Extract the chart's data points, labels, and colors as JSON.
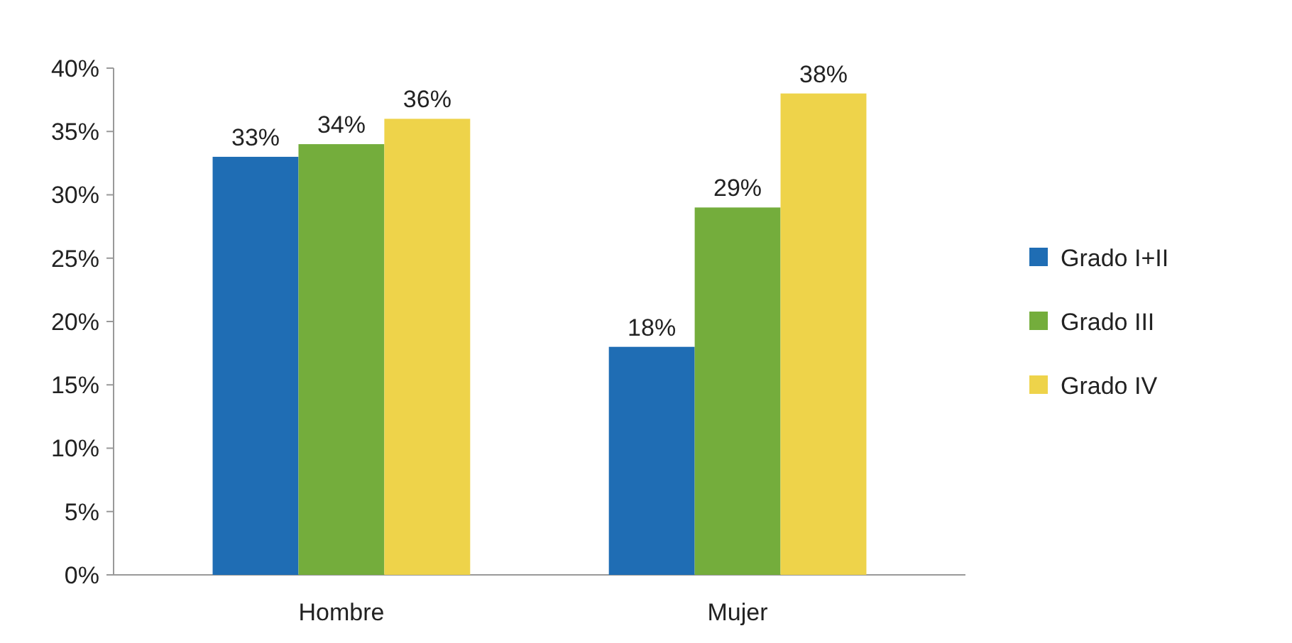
{
  "chart_data": {
    "type": "bar",
    "categories": [
      "Hombre",
      "Mujer"
    ],
    "series": [
      {
        "name": "Grado I+II",
        "color": "#1f6db4",
        "values": [
          33,
          18
        ],
        "value_labels": [
          "33%",
          "18%"
        ]
      },
      {
        "name": "Grado III",
        "color": "#74ad3c",
        "values": [
          34,
          29
        ],
        "value_labels": [
          "34%",
          "29%"
        ]
      },
      {
        "name": "Grado IV",
        "color": "#eed34a",
        "values": [
          36,
          38
        ],
        "value_labels": [
          "36%",
          "38%"
        ]
      }
    ],
    "ylim": [
      0,
      40
    ],
    "yticks": [
      {
        "value": 0,
        "label": "0%"
      },
      {
        "value": 5,
        "label": "5%"
      },
      {
        "value": 10,
        "label": "10%"
      },
      {
        "value": 15,
        "label": "15%"
      },
      {
        "value": 20,
        "label": "20%"
      },
      {
        "value": 25,
        "label": "25%"
      },
      {
        "value": 30,
        "label": "30%"
      },
      {
        "value": 35,
        "label": "35%"
      },
      {
        "value": 40,
        "label": "40%"
      }
    ],
    "legend": "right"
  }
}
